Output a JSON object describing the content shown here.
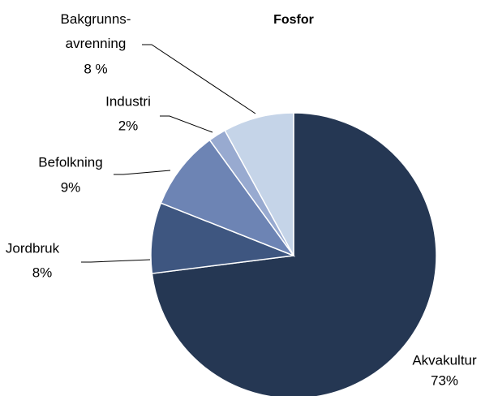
{
  "chart_data": {
    "type": "pie",
    "title": "Fosfor",
    "categories": [
      "Akvakultur",
      "Jordbruk",
      "Befolkning",
      "Industri",
      "Bakgrunns-\navrenning"
    ],
    "values": [
      73,
      8,
      9,
      2,
      8
    ],
    "value_labels": [
      "73%",
      "8%",
      "9%",
      "2%",
      "8 %"
    ],
    "colors": [
      "#253753",
      "#3e5680",
      "#6d84b4",
      "#98aad0",
      "#c5d4e8"
    ]
  }
}
